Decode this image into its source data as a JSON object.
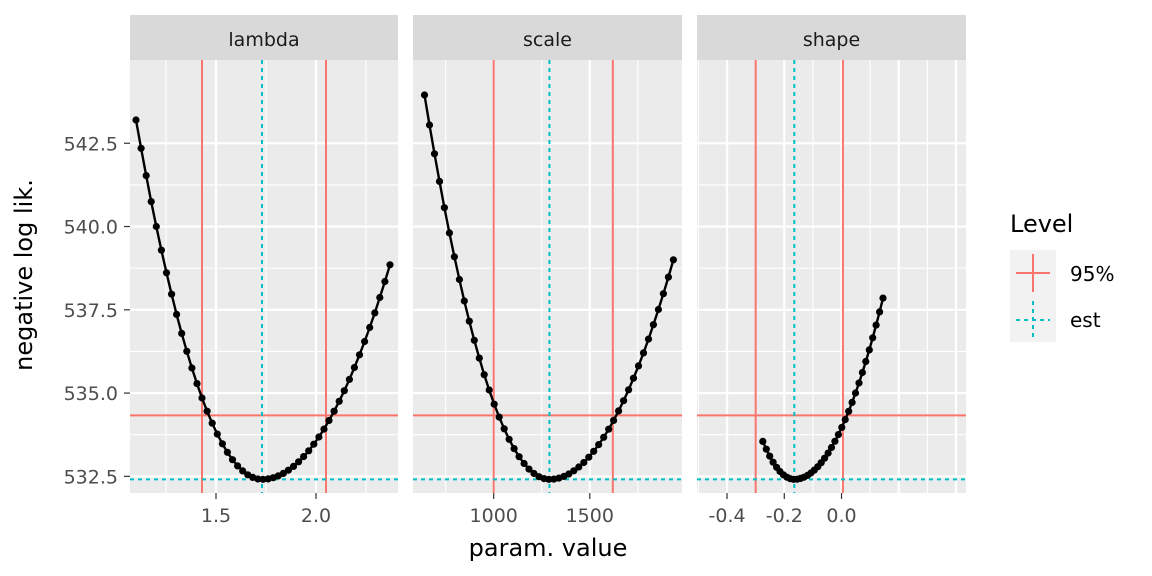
{
  "chart_data": {
    "type": "line",
    "ylabel": "negative log lik.",
    "xlabel": "param. value",
    "ylim": [
      532.0,
      545.0
    ],
    "yticks": [
      532.5,
      535.0,
      537.5,
      540.0,
      542.5
    ],
    "yticklabels": [
      "532.5",
      "535.0",
      "537.5",
      "540.0",
      "542.5"
    ],
    "threshold_95": 534.33,
    "est_nll": 532.41,
    "legend": {
      "title": "Level",
      "placement": "right",
      "entries": [
        {
          "label": "95%",
          "color": "#F8766D",
          "linestyle": "solid"
        },
        {
          "label": "est",
          "color": "#00BFC4",
          "linestyle": "dotted"
        }
      ]
    },
    "colors": {
      "panel_bg": "#EBEBEB",
      "strip_bg": "#D9D9D9",
      "grid": "#FFFFFF",
      "curve": "#000000",
      "ci": "#F8766D",
      "est": "#00BFC4"
    },
    "panels": [
      {
        "label": "lambda",
        "xlim": [
          1.07,
          2.41
        ],
        "xticks": [
          1.5,
          2.0
        ],
        "xticklabels": [
          "1.5",
          "2.0"
        ],
        "ci": [
          1.43,
          2.05
        ],
        "est": 1.73,
        "curve": {
          "xmin": 1.1,
          "xmax": 2.37,
          "points": 51,
          "nll_min": 532.41,
          "left_end": [
            1.1,
            543.2
          ],
          "right_end": [
            2.37,
            538.85
          ]
        }
      },
      {
        "label": "scale",
        "xlim": [
          580,
          1980
        ],
        "xticks": [
          1000,
          1500
        ],
        "xticklabels": [
          "1000",
          "1500"
        ],
        "ci": [
          1000,
          1620
        ],
        "est": 1290,
        "curve": {
          "xmin": 640,
          "xmax": 1935,
          "points": 51,
          "nll_min": 532.41,
          "left_end": [
            640,
            543.95
          ],
          "right_end": [
            1935,
            539.0
          ]
        }
      },
      {
        "label": "shape",
        "xlim": [
          -0.505,
          0.435
        ],
        "xticks": [
          -0.4,
          -0.2,
          0.0
        ],
        "xticklabels": [
          "-0.4",
          "-0.2",
          "0.0"
        ],
        "ci": [
          -0.3,
          0.005
        ],
        "est": -0.165,
        "curve": {
          "xmin": -0.275,
          "xmax": 0.145,
          "points": 36,
          "nll_min": 532.41,
          "left_end": [
            -0.275,
            533.55
          ],
          "right_end": [
            0.145,
            537.85
          ]
        }
      }
    ]
  }
}
